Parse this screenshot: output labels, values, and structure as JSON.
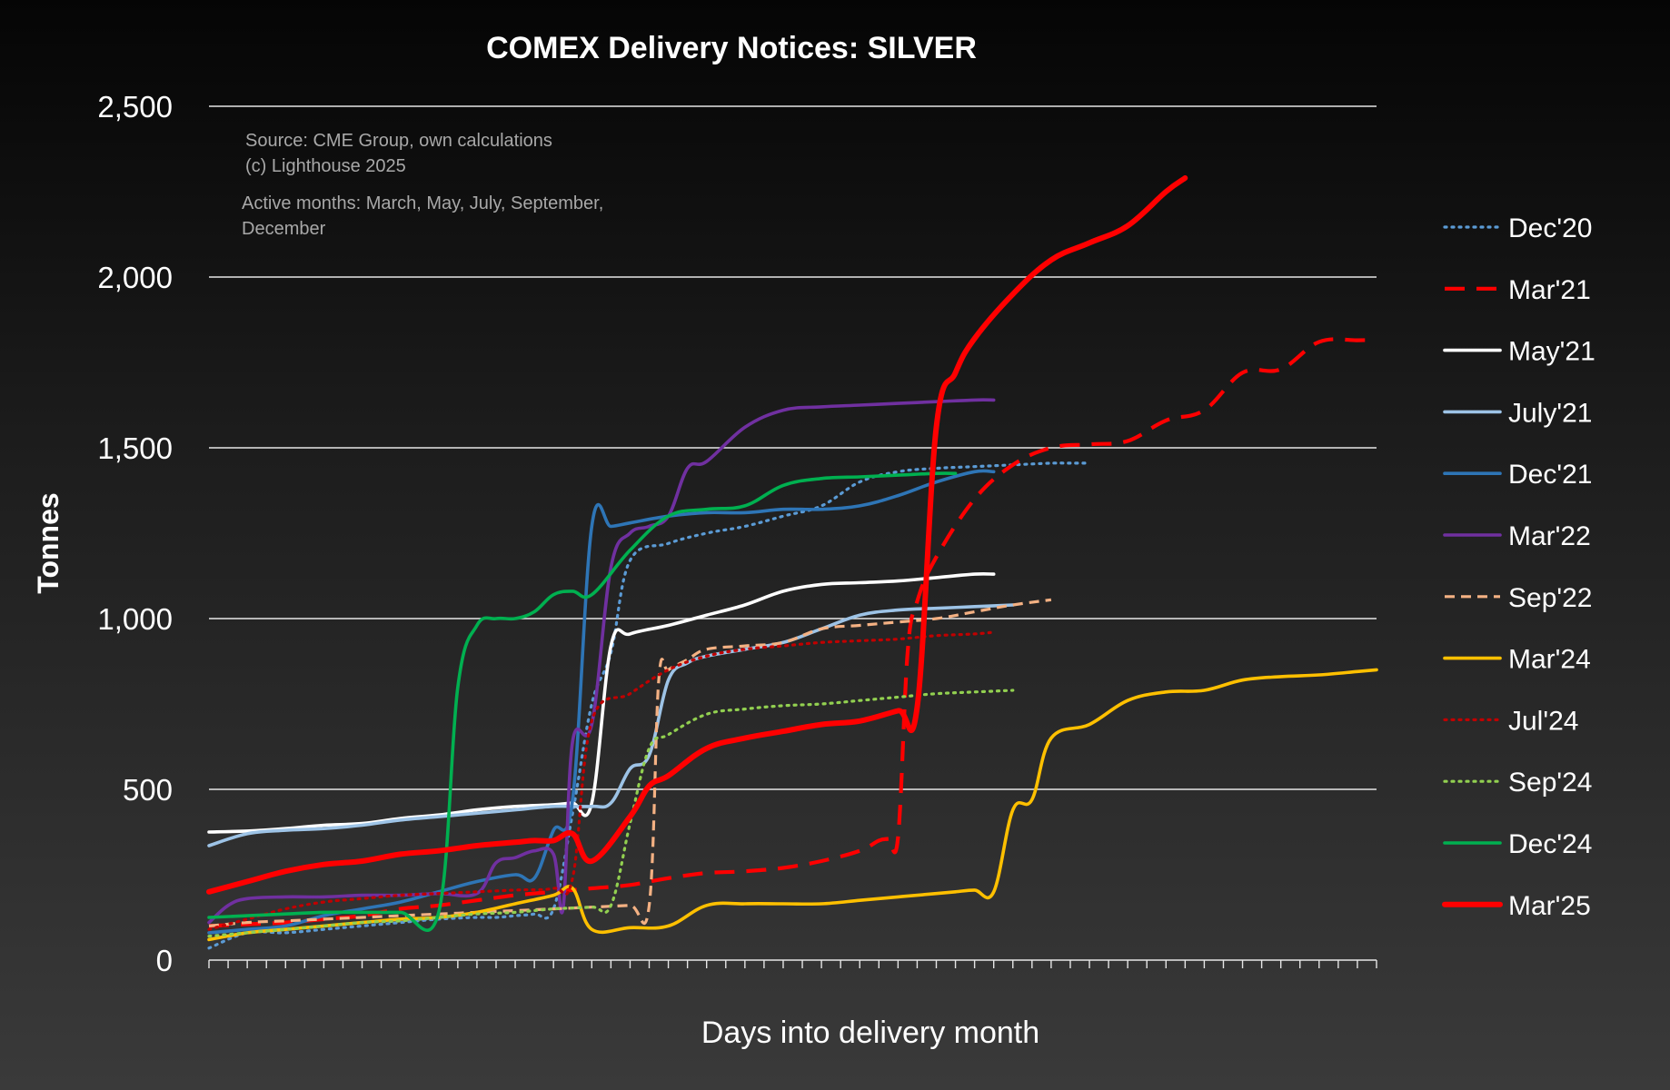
{
  "chart_data": {
    "type": "line",
    "title": "COMEX Delivery Notices: SILVER",
    "xlabel": "Days into delivery month",
    "ylabel": "Tonnes",
    "ylim": [
      0,
      2500
    ],
    "yticks": [
      0,
      500,
      1000,
      1500,
      2000,
      2500
    ],
    "ytick_labels": [
      "0",
      "500",
      "1,000",
      "1,500",
      "2,000",
      "2,500"
    ],
    "x_tick_count": 62,
    "xlim": [
      0,
      61
    ],
    "grid": true,
    "legend_position": "right",
    "annotations": [
      "Source: CME Group, own calculations",
      "(c) Lighthouse 2025",
      "Active months: March, May, July, September,",
      "December"
    ],
    "series": [
      {
        "name": "Dec'20",
        "color": "#5b9bd5",
        "dash": "dotted",
        "x": [
          0,
          2,
          4,
          6,
          8,
          10,
          12,
          14,
          15,
          16,
          17,
          18,
          19,
          20,
          21,
          22,
          24,
          26,
          28,
          30,
          32,
          34,
          36,
          38,
          40,
          42,
          44,
          45,
          46
        ],
        "y": [
          35,
          80,
          80,
          90,
          100,
          110,
          120,
          125,
          125,
          130,
          135,
          150,
          430,
          750,
          900,
          1170,
          1220,
          1250,
          1270,
          1300,
          1330,
          1400,
          1430,
          1440,
          1445,
          1450,
          1455,
          1455,
          1455
        ]
      },
      {
        "name": "Mar'21",
        "color": "#ff0000",
        "dash": "dashed",
        "x": [
          0,
          2,
          4,
          6,
          8,
          10,
          12,
          14,
          16,
          18,
          20,
          22,
          24,
          26,
          28,
          30,
          32,
          34,
          35,
          35.5,
          36,
          36.5,
          37,
          38,
          40,
          42,
          44,
          46,
          48,
          50,
          52,
          54,
          56,
          58,
          60,
          61
        ],
        "y": [
          100,
          105,
          110,
          120,
          130,
          150,
          160,
          175,
          190,
          200,
          210,
          220,
          240,
          255,
          260,
          270,
          290,
          320,
          350,
          355,
          360,
          900,
          1050,
          1180,
          1350,
          1450,
          1500,
          1510,
          1520,
          1580,
          1610,
          1720,
          1730,
          1810,
          1815,
          1815
        ]
      },
      {
        "name": "May'21",
        "color": "#ffffff",
        "dash": "solid",
        "x": [
          0,
          2,
          4,
          6,
          8,
          10,
          12,
          14,
          16,
          18,
          19,
          20,
          21,
          22,
          24,
          26,
          28,
          30,
          32,
          34,
          36,
          38,
          40,
          41
        ],
        "y": [
          375,
          378,
          385,
          395,
          400,
          415,
          425,
          440,
          450,
          455,
          460,
          460,
          920,
          955,
          980,
          1010,
          1040,
          1080,
          1100,
          1105,
          1110,
          1120,
          1130,
          1130
        ]
      },
      {
        "name": "July'21",
        "color": "#9dc3e6",
        "dash": "solid",
        "x": [
          0,
          2,
          4,
          6,
          8,
          10,
          12,
          14,
          16,
          18,
          20,
          21,
          22,
          23,
          24,
          25,
          26,
          28,
          30,
          32,
          34,
          36,
          38,
          40,
          42
        ],
        "y": [
          335,
          370,
          380,
          385,
          395,
          410,
          420,
          430,
          440,
          450,
          450,
          460,
          560,
          600,
          820,
          870,
          890,
          910,
          930,
          970,
          1010,
          1025,
          1030,
          1035,
          1040
        ]
      },
      {
        "name": "Dec'21",
        "color": "#2e75b6",
        "dash": "solid",
        "x": [
          0,
          2,
          4,
          6,
          8,
          10,
          12,
          14,
          16,
          17,
          18,
          19,
          20,
          21,
          22,
          24,
          26,
          28,
          30,
          32,
          34,
          36,
          38,
          40,
          41
        ],
        "y": [
          80,
          90,
          100,
          130,
          150,
          170,
          200,
          230,
          250,
          240,
          380,
          470,
          1270,
          1270,
          1280,
          1300,
          1310,
          1310,
          1320,
          1320,
          1330,
          1360,
          1400,
          1430,
          1430
        ]
      },
      {
        "name": "Mar'22",
        "color": "#7030a0",
        "dash": "solid",
        "x": [
          0,
          1,
          2,
          4,
          6,
          8,
          10,
          12,
          14,
          15,
          16,
          17,
          18,
          18.5,
          19,
          20,
          21,
          22,
          23,
          24,
          25,
          26,
          28,
          30,
          32,
          34,
          36,
          38,
          40,
          41
        ],
        "y": [
          110,
          160,
          180,
          185,
          185,
          190,
          190,
          195,
          195,
          285,
          300,
          320,
          310,
          150,
          640,
          690,
          1150,
          1250,
          1270,
          1300,
          1440,
          1460,
          1560,
          1610,
          1620,
          1625,
          1630,
          1635,
          1640,
          1640
        ]
      },
      {
        "name": "Sep'22",
        "color": "#f4b183",
        "dash": "dashed",
        "x": [
          0,
          2,
          4,
          6,
          8,
          10,
          12,
          14,
          16,
          18,
          20,
          22,
          23,
          23.5,
          24,
          25,
          26,
          28,
          30,
          32,
          34,
          36,
          38,
          40,
          42,
          44
        ],
        "y": [
          100,
          110,
          115,
          120,
          125,
          130,
          135,
          140,
          145,
          150,
          155,
          160,
          160,
          820,
          850,
          880,
          910,
          920,
          930,
          970,
          980,
          990,
          1000,
          1020,
          1040,
          1055
        ]
      },
      {
        "name": "Mar'24",
        "color": "#ffc000",
        "dash": "solid",
        "x": [
          0,
          2,
          4,
          6,
          8,
          10,
          12,
          14,
          16,
          18,
          19,
          20,
          22,
          24,
          26,
          28,
          30,
          32,
          34,
          36,
          38,
          39,
          40,
          41,
          42,
          43,
          44,
          46,
          48,
          50,
          52,
          54,
          56,
          58,
          60,
          61
        ],
        "y": [
          60,
          80,
          90,
          100,
          110,
          120,
          125,
          140,
          165,
          190,
          210,
          90,
          95,
          100,
          160,
          165,
          165,
          165,
          175,
          185,
          195,
          200,
          205,
          200,
          440,
          470,
          650,
          690,
          760,
          785,
          790,
          820,
          830,
          835,
          845,
          850
        ]
      },
      {
        "name": "Jul'24",
        "color": "#c00000",
        "dash": "dotted",
        "x": [
          0,
          2,
          4,
          6,
          8,
          10,
          12,
          14,
          16,
          18,
          19,
          20,
          22,
          24,
          26,
          28,
          30,
          32,
          34,
          36,
          38,
          40,
          41
        ],
        "y": [
          90,
          120,
          150,
          170,
          180,
          190,
          195,
          200,
          205,
          210,
          240,
          700,
          780,
          850,
          890,
          910,
          920,
          930,
          935,
          940,
          950,
          955,
          960
        ]
      },
      {
        "name": "Sep'24",
        "color": "#92d050",
        "dash": "dotted",
        "x": [
          0,
          2,
          4,
          6,
          8,
          10,
          12,
          14,
          16,
          18,
          20,
          21,
          22,
          23,
          24,
          26,
          28,
          30,
          32,
          34,
          36,
          38,
          40,
          42
        ],
        "y": [
          70,
          80,
          90,
          100,
          110,
          115,
          125,
          135,
          140,
          150,
          155,
          160,
          400,
          620,
          660,
          720,
          735,
          745,
          750,
          760,
          770,
          780,
          785,
          790
        ]
      },
      {
        "name": "Dec'24",
        "color": "#00b050",
        "dash": "solid",
        "x": [
          0,
          2,
          4,
          6,
          8,
          10,
          12,
          13,
          14,
          15,
          16,
          17,
          18,
          19,
          20,
          22,
          24,
          26,
          28,
          30,
          32,
          34,
          36,
          38,
          39
        ],
        "y": [
          125,
          130,
          135,
          140,
          140,
          140,
          140,
          800,
          980,
          1000,
          1000,
          1020,
          1070,
          1080,
          1070,
          1200,
          1300,
          1320,
          1330,
          1390,
          1410,
          1415,
          1420,
          1425,
          1425
        ]
      },
      {
        "name": "Mar'25",
        "color": "#ff0000",
        "dash": "solid-thick",
        "x": [
          0,
          2,
          4,
          6,
          8,
          10,
          12,
          14,
          16,
          17,
          18,
          19,
          20,
          22,
          23,
          24,
          26,
          28,
          30,
          32,
          34,
          36,
          37,
          38,
          39,
          40,
          42,
          44,
          46,
          48,
          50,
          51
        ],
        "y": [
          200,
          230,
          260,
          280,
          290,
          310,
          320,
          335,
          345,
          350,
          350,
          370,
          290,
          420,
          510,
          540,
          620,
          650,
          670,
          690,
          700,
          730,
          740,
          1560,
          1720,
          1820,
          1950,
          2050,
          2100,
          2150,
          2250,
          2290
        ]
      }
    ]
  }
}
